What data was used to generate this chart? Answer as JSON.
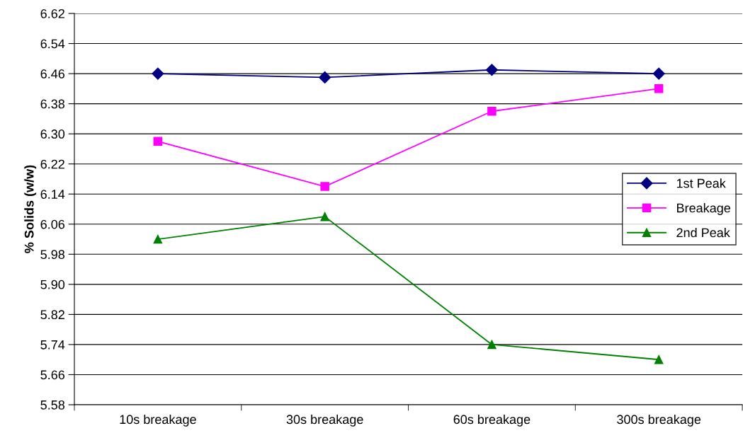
{
  "chart_data": {
    "type": "line",
    "ylabel": "% Solids (w/w)",
    "categories": [
      "10s breakage",
      "30s breakage",
      "60s breakage",
      "300s breakage"
    ],
    "series": [
      {
        "name": "1st Peak",
        "color": "#000080",
        "marker": "diamond",
        "values": [
          6.46,
          6.45,
          6.47,
          6.46
        ]
      },
      {
        "name": "Breakage",
        "color": "#ff00ff",
        "marker": "square",
        "values": [
          6.28,
          6.16,
          6.36,
          6.42
        ]
      },
      {
        "name": "2nd Peak",
        "color": "#008000",
        "marker": "triangle",
        "values": [
          6.02,
          6.08,
          5.74,
          5.7
        ]
      }
    ],
    "ylim": [
      5.58,
      6.62
    ],
    "yticks": [
      5.58,
      5.66,
      5.74,
      5.82,
      {
        "value": 5.9,
        "label": "5.90"
      },
      5.98,
      6.06,
      6.14,
      6.22,
      {
        "value": 6.3,
        "label": "6.30"
      },
      6.38,
      6.46,
      6.54,
      6.62
    ],
    "grid": "y",
    "legend": "right",
    "line_style": "solid"
  }
}
